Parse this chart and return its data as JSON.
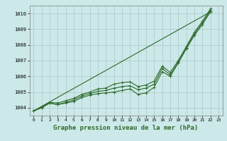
{
  "x": [
    0,
    1,
    2,
    3,
    4,
    5,
    6,
    7,
    8,
    9,
    10,
    11,
    12,
    13,
    14,
    15,
    16,
    17,
    18,
    19,
    20,
    21,
    22,
    23
  ],
  "line_straight": [
    [
      0,
      22
    ],
    [
      1003.8,
      1010.1
    ]
  ],
  "line1": [
    1003.8,
    1004.0,
    1004.3,
    1004.2,
    1004.3,
    1004.4,
    1004.65,
    1004.8,
    1004.9,
    1004.95,
    1005.0,
    1005.1,
    1005.2,
    1004.85,
    1004.95,
    1005.3,
    1006.3,
    1006.0,
    1006.85,
    1007.75,
    1008.6,
    1009.3,
    1010.1,
    null
  ],
  "line2": [
    1003.8,
    1004.0,
    1004.3,
    1004.2,
    1004.35,
    1004.5,
    1004.75,
    1004.9,
    1005.05,
    1005.1,
    1005.25,
    1005.35,
    1005.4,
    1005.15,
    1005.25,
    1005.5,
    1006.5,
    1006.1,
    1006.9,
    1007.8,
    1008.7,
    1009.4,
    1010.2,
    null
  ],
  "line3": [
    1003.8,
    1004.05,
    1004.35,
    1004.3,
    1004.45,
    1004.6,
    1004.85,
    1005.0,
    1005.2,
    1005.25,
    1005.5,
    1005.6,
    1005.65,
    1005.35,
    1005.45,
    1005.7,
    1006.65,
    1006.25,
    1007.0,
    1007.9,
    1008.8,
    1009.5,
    1010.3,
    null
  ],
  "ylim": [
    1003.5,
    1010.5
  ],
  "xlim": [
    -0.5,
    23.5
  ],
  "yticks": [
    1004,
    1005,
    1006,
    1007,
    1008,
    1009,
    1010
  ],
  "xticks": [
    0,
    1,
    2,
    3,
    4,
    5,
    6,
    7,
    8,
    9,
    10,
    11,
    12,
    13,
    14,
    15,
    16,
    17,
    18,
    19,
    20,
    21,
    22,
    23
  ],
  "xlabel": "Graphe pression niveau de la mer (hPa)",
  "line_color": "#2d6a2d",
  "bg_color": "#cce8e8",
  "grid_color": "#aac8c8"
}
